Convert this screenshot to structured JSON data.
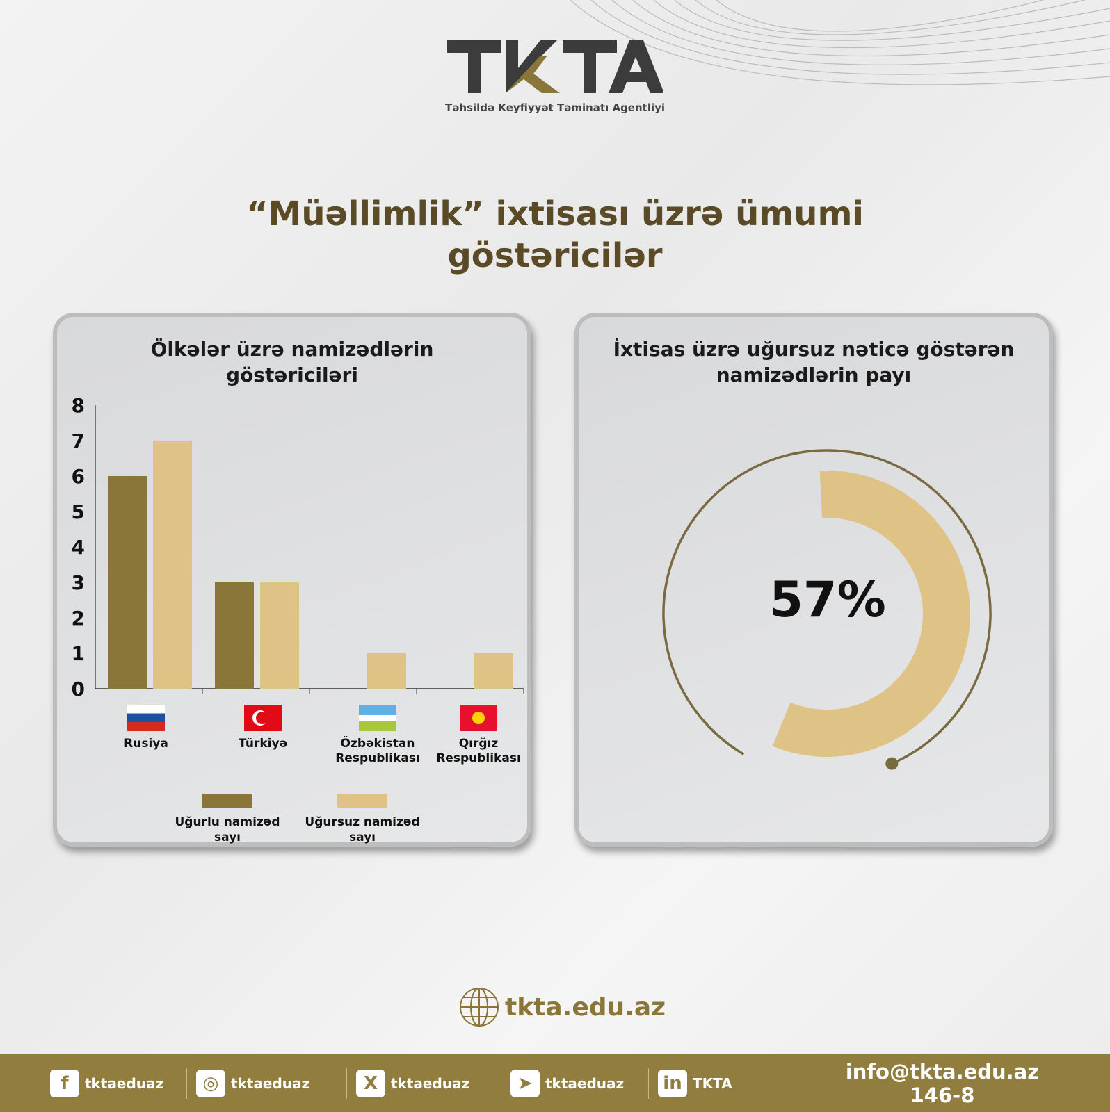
{
  "logo": {
    "text": "TKTA",
    "subtitle": "Təhsildə Keyfiyyət Təminatı Agentliyi"
  },
  "title": [
    "“Müəllimlik” ixtisası üzrə ümumi",
    "göstəricilər"
  ],
  "colors": {
    "success": "#8a7638",
    "fail": "#dfc285",
    "footer": "#917e3e",
    "title": "#5a4a25"
  },
  "chart_data": [
    {
      "type": "bar",
      "title": "Ölkələr üzrə namizədlərin göstəriciləri",
      "title_lines": [
        "Ölkələr üzrə namizədlərin",
        "göstəriciləri"
      ],
      "categories": [
        "Rusiya",
        "Türkiyə",
        "Özbəkistan Respublikası",
        "Qırğız Respublikası"
      ],
      "category_lines": [
        [
          "Rusiya"
        ],
        [
          "Türkiyə"
        ],
        [
          "Özbəkistan",
          "Respublikası"
        ],
        [
          "Qırğız",
          "Respublikası"
        ]
      ],
      "flags": [
        "russia-flag",
        "turkey-flag",
        "uzbekistan-flag",
        "kyrgyzstan-flag"
      ],
      "series": [
        {
          "name": "Uğurlu namizəd sayı",
          "name_lines": [
            "Uğurlu namizəd",
            "sayı"
          ],
          "values": [
            6,
            3,
            0,
            0
          ],
          "color": "#8a7638"
        },
        {
          "name": "Uğursuz namizəd sayı",
          "name_lines": [
            "Uğursuz namizəd",
            "sayı"
          ],
          "values": [
            7,
            3,
            1,
            1
          ],
          "color": "#dfc285"
        }
      ],
      "ylim": [
        0,
        8
      ],
      "yticks": [
        "0",
        "1",
        "2",
        "3",
        "4",
        "5",
        "6",
        "7",
        "8"
      ],
      "grid": false,
      "legend": "bottom"
    },
    {
      "type": "pie",
      "subtype": "donut",
      "title": "İxtisas üzrə uğursuz nəticə göstərən namizədlərin payı",
      "title_lines": [
        "İxtisas üzrə uğursuz nəticə göstərən",
        "namizədlərin payı"
      ],
      "value": 57,
      "label": "57%",
      "color": "#dfc285"
    }
  ],
  "website": "tkta.edu.az",
  "footer": {
    "social": [
      {
        "icon": "facebook-icon",
        "glyph": "f",
        "handle": "tktaeduaz"
      },
      {
        "icon": "instagram-icon",
        "glyph": "◎",
        "handle": "tktaeduaz"
      },
      {
        "icon": "x-icon",
        "glyph": "X",
        "handle": "tktaeduaz"
      },
      {
        "icon": "telegram-icon",
        "glyph": "➤",
        "handle": "tktaeduaz"
      },
      {
        "icon": "linkedin-icon",
        "glyph": "in",
        "handle": "TKTA"
      }
    ],
    "email": "info@tkta.edu.az",
    "phone": "146-8"
  }
}
